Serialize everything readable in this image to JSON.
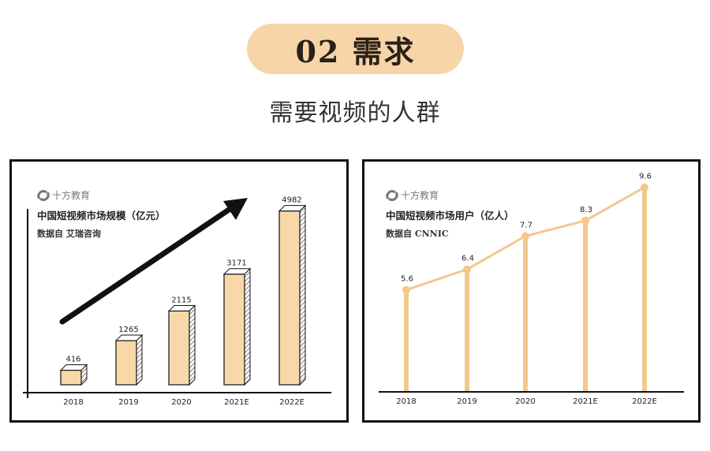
{
  "header": {
    "section_label": "02 需求",
    "subtitle": "需要视频的人群"
  },
  "colors": {
    "pill": "#f7d5a8",
    "bar": "#f8d8a8",
    "line": "#f2c88c",
    "axis": "#111111"
  },
  "left_panel": {
    "brand": "十方教育",
    "brand_icon": "s-logo-icon",
    "title": "中国短视频市场规模（亿元）",
    "source": "数据自  艾瑞咨询"
  },
  "right_panel": {
    "brand": "十方教育",
    "brand_icon": "s-logo-icon",
    "title": "中国短视频市场用户（亿人）",
    "source": "数据自  CNNIC"
  },
  "chart_data": [
    {
      "type": "bar",
      "title": "中国短视频市场规模（亿元）",
      "categories": [
        "2018",
        "2019",
        "2020",
        "2021E",
        "2022E"
      ],
      "values": [
        416,
        1265,
        2115,
        3171,
        4982
      ],
      "ylim": [
        0,
        5200
      ],
      "grid": false,
      "annotation": "upward-trend-arrow"
    },
    {
      "type": "line",
      "title": "中国短视频市场用户（亿人）",
      "categories": [
        "2018",
        "2019",
        "2020",
        "2021E",
        "2022E"
      ],
      "values": [
        5.6,
        6.4,
        7.7,
        8.3,
        9.6
      ],
      "ylim": [
        0,
        10
      ],
      "grid": false
    }
  ]
}
